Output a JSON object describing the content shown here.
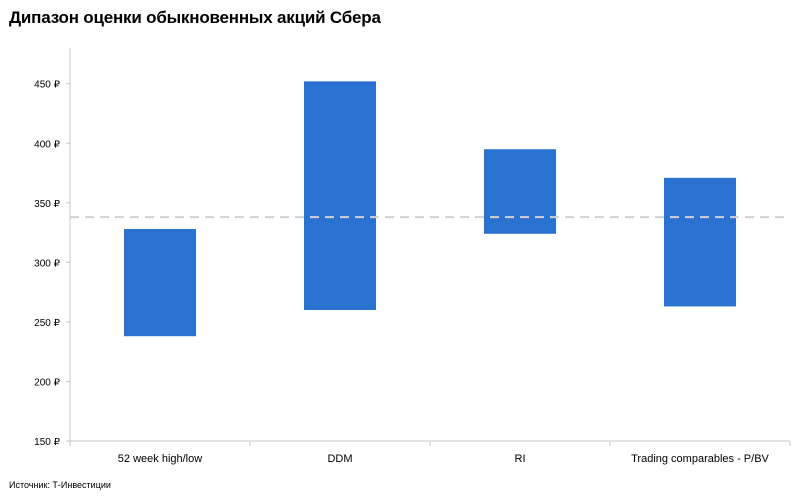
{
  "title": "Дипазон оценки обыкновенных акций Сбера",
  "source": "Источник: Т-Инвестиции",
  "chart_data": {
    "type": "bar",
    "subtype": "floating-range",
    "categories": [
      "52 week high/low",
      "DDM",
      "RI",
      "Trading comparables - P/BV"
    ],
    "ranges": [
      {
        "low": 238,
        "high": 328
      },
      {
        "low": 260,
        "high": 452
      },
      {
        "low": 324,
        "high": 395
      },
      {
        "low": 263,
        "high": 371
      }
    ],
    "reference_line": {
      "value": 338,
      "style": "dashed"
    },
    "ylim": [
      150,
      480
    ],
    "yticks": [
      150,
      200,
      250,
      300,
      350,
      400,
      450
    ],
    "ytick_labels": [
      "150 ₽",
      "200 ₽",
      "250 ₽",
      "300 ₽",
      "350 ₽",
      "400 ₽",
      "450 ₽"
    ],
    "grid": false,
    "colors": {
      "bar": "#2a72d0",
      "reference": "#d0d2d6",
      "axis": "#c8c8c8"
    }
  }
}
